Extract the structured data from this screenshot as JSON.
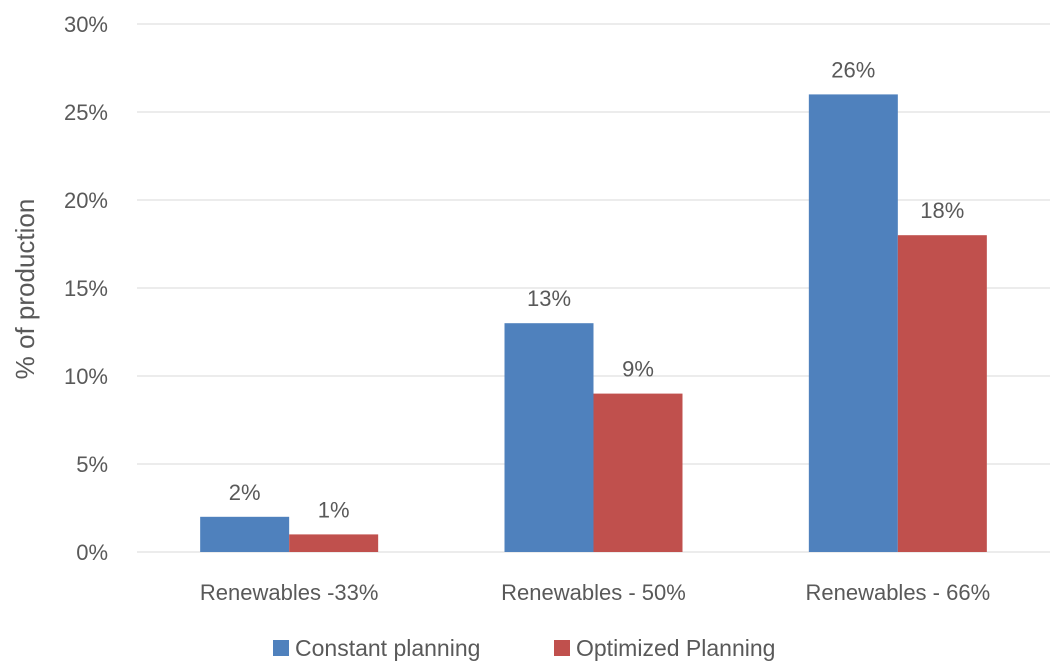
{
  "chart_data": {
    "type": "bar",
    "title": "",
    "xlabel": "",
    "ylabel": "% of production",
    "categories": [
      "Renewables -33%",
      "Renewables - 50%",
      "Renewables - 66%"
    ],
    "series": [
      {
        "name": "Constant planning",
        "values": [
          2,
          13,
          26
        ],
        "labels": [
          "2%",
          "13%",
          "26%"
        ],
        "color": "#4f81bd"
      },
      {
        "name": "Optimized Planning",
        "values": [
          1,
          9,
          18
        ],
        "labels": [
          "1%",
          "9%",
          "18%"
        ],
        "color": "#c0504d"
      }
    ],
    "ylim": [
      0,
      30
    ],
    "yticks": [
      0,
      5,
      10,
      15,
      20,
      25,
      30
    ],
    "ytick_labels": [
      "0%",
      "5%",
      "10%",
      "15%",
      "20%",
      "25%",
      "30%"
    ],
    "grid": true,
    "legend_position": "bottom"
  }
}
